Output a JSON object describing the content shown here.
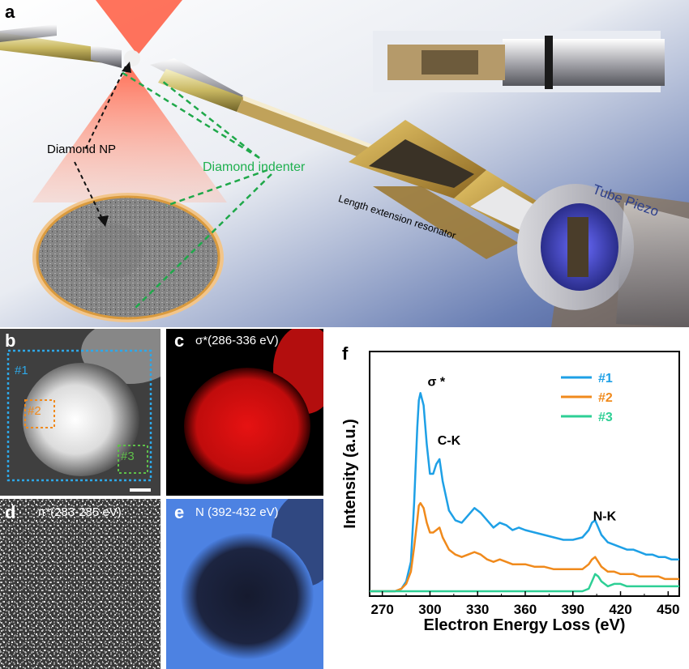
{
  "panel_a": {
    "label": "a",
    "diamond_np": "Diamond NP",
    "diamond_indenter": "Diamond indenter",
    "resonator": "Length extension resonator",
    "tube_piezo": "Tube Piezo"
  },
  "panel_b": {
    "label": "b",
    "roi1": "#1",
    "roi2": "#2",
    "roi3": "#3"
  },
  "panel_c": {
    "label": "c",
    "caption": "σ*(286-336 eV)"
  },
  "panel_d": {
    "label": "d",
    "caption": "π*(283-285 eV)"
  },
  "panel_e": {
    "label": "e",
    "caption": "N (392-432 eV)"
  },
  "panel_f": {
    "label": "f"
  },
  "colors": {
    "s1": "#1ea0e6",
    "s2": "#f08a1c",
    "s3": "#2ecf95",
    "map_red": "#e01010",
    "map_blue": "#4a7fe0"
  },
  "chart_data": {
    "type": "line",
    "xlabel": "Electron Energy Loss (eV)",
    "ylabel": "Intensity (a.u.)",
    "xlim": [
      262,
      457
    ],
    "ylim": [
      0,
      1
    ],
    "xticks": [
      270,
      300,
      330,
      360,
      390,
      420,
      450
    ],
    "legend_position": "top-right",
    "annotations": [
      {
        "text": "σ *",
        "x": 304,
        "y": 0.86
      },
      {
        "text": "C-K",
        "x": 312,
        "y": 0.62
      },
      {
        "text": "N-K",
        "x": 410,
        "y": 0.31
      }
    ],
    "series": [
      {
        "name": "#1",
        "color": "#1ea0e6",
        "x": [
          262,
          270,
          278,
          282,
          285,
          288,
          290,
          292,
          293,
          294,
          296,
          298,
          300,
          302,
          304,
          306,
          308,
          312,
          316,
          320,
          324,
          328,
          332,
          336,
          340,
          344,
          348,
          352,
          356,
          360,
          366,
          372,
          378,
          384,
          390,
          396,
          400,
          402,
          404,
          406,
          408,
          412,
          416,
          420,
          424,
          428,
          432,
          436,
          440,
          444,
          448,
          452,
          457
        ],
        "y": [
          0.02,
          0.02,
          0.02,
          0.03,
          0.06,
          0.14,
          0.38,
          0.69,
          0.8,
          0.83,
          0.78,
          0.62,
          0.5,
          0.5,
          0.54,
          0.56,
          0.47,
          0.35,
          0.31,
          0.3,
          0.33,
          0.36,
          0.34,
          0.31,
          0.28,
          0.3,
          0.29,
          0.27,
          0.28,
          0.27,
          0.26,
          0.25,
          0.24,
          0.23,
          0.23,
          0.24,
          0.27,
          0.3,
          0.31,
          0.28,
          0.25,
          0.22,
          0.21,
          0.2,
          0.19,
          0.19,
          0.18,
          0.17,
          0.17,
          0.16,
          0.16,
          0.15,
          0.15
        ]
      },
      {
        "name": "#2",
        "color": "#f08a1c",
        "x": [
          262,
          270,
          278,
          282,
          285,
          288,
          290,
          292,
          293,
          294,
          296,
          298,
          300,
          302,
          304,
          306,
          308,
          312,
          316,
          320,
          324,
          328,
          332,
          336,
          340,
          344,
          348,
          352,
          356,
          360,
          366,
          372,
          378,
          384,
          390,
          396,
          400,
          402,
          404,
          406,
          408,
          412,
          416,
          420,
          424,
          428,
          432,
          436,
          440,
          444,
          448,
          452,
          457
        ],
        "y": [
          0.02,
          0.02,
          0.02,
          0.03,
          0.05,
          0.1,
          0.2,
          0.31,
          0.37,
          0.38,
          0.36,
          0.3,
          0.26,
          0.26,
          0.27,
          0.28,
          0.24,
          0.19,
          0.17,
          0.16,
          0.17,
          0.18,
          0.17,
          0.15,
          0.14,
          0.15,
          0.14,
          0.13,
          0.13,
          0.13,
          0.12,
          0.12,
          0.11,
          0.11,
          0.11,
          0.11,
          0.13,
          0.15,
          0.16,
          0.14,
          0.12,
          0.1,
          0.1,
          0.09,
          0.09,
          0.09,
          0.08,
          0.08,
          0.08,
          0.08,
          0.07,
          0.07,
          0.07
        ]
      },
      {
        "name": "#3",
        "color": "#2ecf95",
        "x": [
          262,
          270,
          280,
          290,
          300,
          310,
          320,
          330,
          340,
          350,
          360,
          370,
          380,
          390,
          396,
          400,
          402,
          404,
          406,
          408,
          412,
          416,
          420,
          424,
          428,
          432,
          436,
          440,
          444,
          448,
          452,
          457
        ],
        "y": [
          0.02,
          0.02,
          0.02,
          0.02,
          0.02,
          0.02,
          0.02,
          0.02,
          0.02,
          0.02,
          0.02,
          0.02,
          0.02,
          0.02,
          0.02,
          0.03,
          0.06,
          0.09,
          0.08,
          0.06,
          0.04,
          0.05,
          0.05,
          0.04,
          0.04,
          0.04,
          0.04,
          0.04,
          0.04,
          0.04,
          0.04,
          0.04
        ]
      }
    ]
  }
}
